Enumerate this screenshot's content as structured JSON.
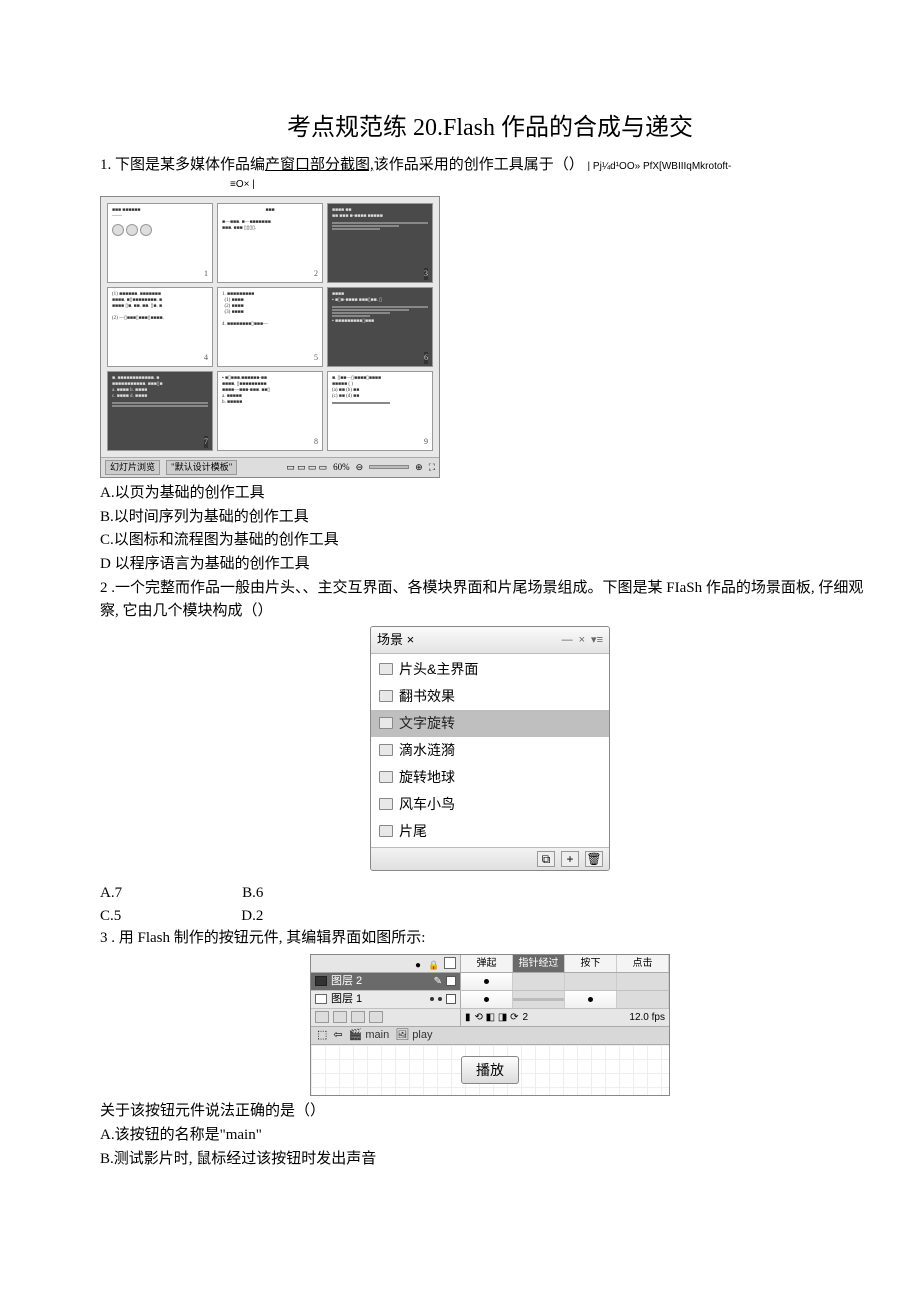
{
  "title": "考点规范练 20.Flash 作品的合成与递交",
  "q1": {
    "stem_prefix": "1. 下图是某多媒体作品编",
    "stem_mid_underlined": "产窗口部分截图,",
    "stem_suffix": "该作品采用的创作工具属于（）",
    "trailing_small": "| Pj¼d¹OO» PfX[WBIIIqMkrotoft-",
    "eox": "≡O× |",
    "options": {
      "A": "A.以页为基础的创作工具",
      "B": "B.以时间序列为基础的创作工具",
      "C": "C.以图标和流程图为基础的创作工具",
      "D": "D 以程序语言为基础的创作工具"
    },
    "fig": {
      "slides": [
        1,
        2,
        3,
        4,
        5,
        6,
        7,
        8,
        9
      ],
      "status_left1": "幻灯片浏览",
      "status_left2": "\"默认设计模板\"",
      "status_zoom": "60%"
    }
  },
  "q2": {
    "stem": "2 .一个完整而作品一般由片头、、主交互界面、各模块界面和片尾场景组成。下图是某 FIaSh 作品的场景面板, 仔细观察, 它由几个模块构成（）",
    "panel": {
      "header": "场景 ×",
      "items": [
        "片头&主界面",
        "翻书效果",
        "文字旋转",
        "滴水涟漪",
        "旋转地球",
        "风车小鸟",
        "片尾"
      ],
      "selected_index": 2,
      "footer_icons": [
        "⧉",
        "+",
        "🗑"
      ]
    },
    "options": {
      "A": "A.7",
      "B": "B.6",
      "C": "C.5",
      "D": "D.2"
    }
  },
  "q3": {
    "stem": "3 . 用 Flash 制作的按钮元件, 其编辑界面如图所示:",
    "timeline": {
      "frame_labels": [
        "弹起",
        "指针经过",
        "按下",
        "点击"
      ],
      "selected_frame_index": 1,
      "layers": [
        {
          "name": "图层 2",
          "selected": true,
          "keyframes": [
            true,
            false,
            false,
            false
          ]
        },
        {
          "name": "图层 1",
          "selected": false,
          "keyframes": [
            true,
            false,
            true,
            false
          ]
        }
      ],
      "status_frame": "2",
      "status_fps": "12.0 fps",
      "nav_scene": "main",
      "nav_symbol": "play",
      "button_label": "播放"
    },
    "follow": "关于该按钮元件说法正确的是（）",
    "options": {
      "A": "A.该按钮的名称是\"main\"",
      "B": "B.测试影片时, 鼠标经过该按钮时发出声音"
    }
  }
}
